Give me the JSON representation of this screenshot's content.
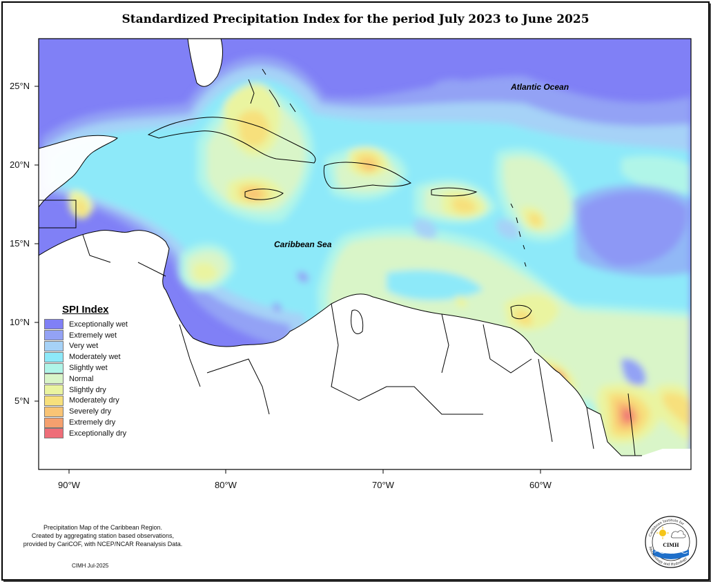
{
  "title": "Standardized Precipitation Index for the period July 2023 to June 2025",
  "lat_labels": [
    "25°N",
    "20°N",
    "15°N",
    "10°N",
    "5°N"
  ],
  "lon_labels": [
    "90°W",
    "80°W",
    "70°W",
    "60°W"
  ],
  "map_labels": {
    "atlantic": "Atlantic Ocean",
    "caribbean": "Caribbean Sea"
  },
  "legend": {
    "title": "SPI Index",
    "items": [
      {
        "label": "Exceptionally wet",
        "color": "#8080f6"
      },
      {
        "label": "Extremely wet",
        "color": "#93a2f5"
      },
      {
        "label": "Very wet",
        "color": "#a6d2f7"
      },
      {
        "label": "Moderately wet",
        "color": "#8de9f9"
      },
      {
        "label": "Slightly wet",
        "color": "#b0f5e8"
      },
      {
        "label": "Normal",
        "color": "#d9f5c8"
      },
      {
        "label": "Slightly dry",
        "color": "#eaf4a0"
      },
      {
        "label": "Moderately dry",
        "color": "#f7e07c"
      },
      {
        "label": "Severely dry",
        "color": "#f9c475"
      },
      {
        "label": "Extremely dry",
        "color": "#f5a06e"
      },
      {
        "label": "Exceptionally dry",
        "color": "#ee6d78"
      }
    ]
  },
  "credits": {
    "line1": "Precipitation Map of the Caribbean Region.",
    "line2": "Created by aggregating station based observations,",
    "line3": "provided by CariCOF, with NCEP/NCAR Reanalysis Data.",
    "date": "CIMH Jul-2025"
  },
  "logo": {
    "name": "CIMH",
    "arc_text_top": "Caribbean Institute for",
    "arc_text_bottom": "Meteorology and Hydrology"
  }
}
